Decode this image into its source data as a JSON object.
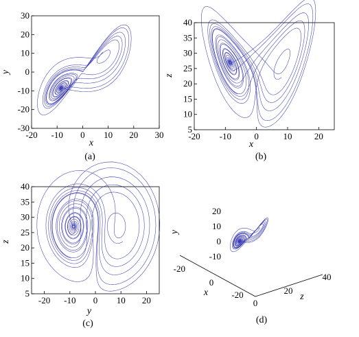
{
  "chart_data": [
    {
      "id": "a",
      "type": "line",
      "caption": "(a)",
      "xlabel": "x",
      "ylabel": "y",
      "xlim": [
        -20,
        30
      ],
      "ylim": [
        -30,
        30
      ],
      "xticks": [
        "-20",
        "-10",
        "0",
        "10",
        "20",
        "30"
      ],
      "yticks": [
        "-30",
        "-20",
        "-10",
        "0",
        "10",
        "20",
        "30"
      ],
      "projection": [
        "x",
        "y"
      ],
      "series": [
        {
          "values": "Lorenz attractor trajectory (sigma=10, rho=28, beta=8/3), x range ~[-18, 20], y range ~[-25, 25]",
          "x_range": [
            -18,
            20
          ],
          "y_range": [
            -25,
            25
          ]
        }
      ],
      "grid": false
    },
    {
      "id": "b",
      "type": "line",
      "caption": "(b)",
      "xlabel": "x",
      "ylabel": "z",
      "xlim": [
        -20,
        25
      ],
      "ylim": [
        5,
        40
      ],
      "xticks": [
        "-20",
        "-10",
        "0",
        "10",
        "20"
      ],
      "yticks": [
        "5",
        "10",
        "15",
        "20",
        "25",
        "30",
        "35",
        "40"
      ],
      "projection": [
        "x",
        "z"
      ],
      "series": [
        {
          "values": "Lorenz attractor trajectory, x range ~[-18, 18], z range ~[8, 38]",
          "x_range": [
            -18,
            18
          ],
          "z_range": [
            8,
            38
          ]
        }
      ],
      "grid": false
    },
    {
      "id": "c",
      "type": "line",
      "caption": "(c)",
      "xlabel": "y",
      "ylabel": "z",
      "xlim": [
        -25,
        25
      ],
      "ylim": [
        5,
        40
      ],
      "xticks": [
        "-20",
        "-10",
        "0",
        "10",
        "20"
      ],
      "yticks": [
        "5",
        "10",
        "15",
        "20",
        "25",
        "30",
        "35",
        "40"
      ],
      "projection": [
        "y",
        "z"
      ],
      "series": [
        {
          "values": "Lorenz attractor trajectory, y range ~[-22, 22], z range ~[8, 38]",
          "y_range": [
            -22,
            22
          ],
          "z_range": [
            8,
            38
          ]
        }
      ],
      "grid": false
    },
    {
      "id": "d",
      "type": "line",
      "caption": "(d)",
      "xlabel": "x",
      "ylabel": "y",
      "zlabel": "z",
      "xticks": [
        "-20",
        "0",
        "-20"
      ],
      "yticks": [
        "-10",
        "0",
        "10",
        "20"
      ],
      "zticks": [
        "0",
        "20",
        "40"
      ],
      "projection": "3d",
      "series": [
        {
          "values": "Lorenz attractor trajectory in 3D view"
        }
      ],
      "grid": false
    }
  ]
}
